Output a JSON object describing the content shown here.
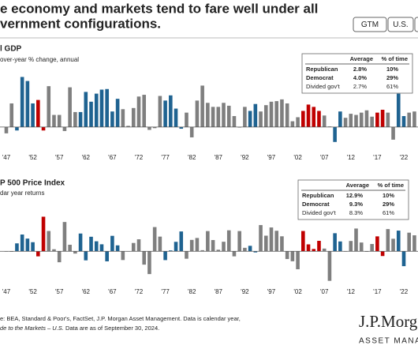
{
  "header": {
    "title_lines": [
      "e economy and markets tend to fare well under all",
      "vernment configurations."
    ],
    "buttons": [
      "GTM",
      "U.S."
    ]
  },
  "chart_data": [
    {
      "type": "bar",
      "title": "l GDP",
      "subtitle": "over-year % change, annual",
      "categories": [
        "'47",
        null,
        null,
        null,
        null,
        "'52",
        null,
        null,
        null,
        null,
        "'57",
        null,
        null,
        null,
        null,
        "'62",
        null,
        null,
        null,
        null,
        "'67",
        null,
        null,
        null,
        null,
        "'72",
        null,
        null,
        null,
        null,
        "'77",
        null,
        null,
        null,
        null,
        "'82",
        null,
        null,
        null,
        null,
        "'87",
        null,
        null,
        null,
        null,
        "'92",
        null,
        null,
        null,
        null,
        "'97",
        null,
        null,
        null,
        null,
        "'02",
        null,
        null,
        null,
        null,
        "'07",
        null,
        null,
        null,
        null,
        "'12",
        null,
        null,
        null,
        null,
        "'17",
        null,
        null,
        null,
        null,
        "'22",
        null,
        null
      ],
      "values": [
        -1.1,
        4.1,
        -0.6,
        8.7,
        8.0,
        4.1,
        4.7,
        -0.6,
        7.1,
        2.1,
        2.1,
        -0.7,
        6.9,
        2.6,
        2.6,
        6.1,
        4.4,
        5.8,
        6.5,
        6.6,
        2.7,
        4.9,
        3.1,
        0.2,
        3.3,
        5.3,
        5.6,
        -0.5,
        -0.2,
        5.4,
        4.6,
        5.5,
        3.2,
        -0.3,
        2.5,
        -1.8,
        4.6,
        7.2,
        4.2,
        3.5,
        3.5,
        4.2,
        3.7,
        1.9,
        -0.1,
        3.5,
        2.8,
        4.0,
        2.7,
        3.8,
        4.4,
        4.5,
        4.8,
        4.1,
        1.0,
        1.7,
        2.8,
        3.9,
        3.5,
        2.8,
        2.0,
        0.1,
        -2.6,
        2.7,
        1.6,
        2.3,
        2.1,
        2.5,
        2.9,
        1.8,
        2.5,
        3.0,
        2.5,
        -2.2,
        5.8,
        1.9,
        2.5,
        2.7
      ],
      "bar_colors": [
        "#7f7f7f",
        "#7f7f7f",
        "#1f6391",
        "#1f6391",
        "#1f6391",
        "#1f6391",
        "#c00000",
        "#c00000",
        "#7f7f7f",
        "#7f7f7f",
        "#7f7f7f",
        "#7f7f7f",
        "#7f7f7f",
        "#7f7f7f",
        "#1f6391",
        "#1f6391",
        "#1f6391",
        "#1f6391",
        "#1f6391",
        "#1f6391",
        "#1f6391",
        "#1f6391",
        "#7f7f7f",
        "#7f7f7f",
        "#7f7f7f",
        "#7f7f7f",
        "#7f7f7f",
        "#7f7f7f",
        "#7f7f7f",
        "#7f7f7f",
        "#1f6391",
        "#1f6391",
        "#1f6391",
        "#1f6391",
        "#7f7f7f",
        "#7f7f7f",
        "#7f7f7f",
        "#7f7f7f",
        "#7f7f7f",
        "#7f7f7f",
        "#7f7f7f",
        "#7f7f7f",
        "#7f7f7f",
        "#7f7f7f",
        "#7f7f7f",
        "#7f7f7f",
        "#1f6391",
        "#1f6391",
        "#7f7f7f",
        "#7f7f7f",
        "#7f7f7f",
        "#7f7f7f",
        "#7f7f7f",
        "#7f7f7f",
        "#7f7f7f",
        "#7f7f7f",
        "#c00000",
        "#c00000",
        "#c00000",
        "#c00000",
        "#7f7f7f",
        "#7f7f7f",
        "#1f6391",
        "#1f6391",
        "#7f7f7f",
        "#7f7f7f",
        "#7f7f7f",
        "#7f7f7f",
        "#7f7f7f",
        "#7f7f7f",
        "#c00000",
        "#c00000",
        "#7f7f7f",
        "#7f7f7f",
        "#1f6391",
        "#1f6391",
        "#7f7f7f",
        "#7f7f7f"
      ],
      "ylim": [
        -4,
        10
      ],
      "legend_table": {
        "headers": [
          "Average",
          "% of time"
        ],
        "rows": [
          {
            "name": "Republican",
            "color": "#c00000",
            "average": "2.8%",
            "share": "10%"
          },
          {
            "name": "Democrat",
            "color": "#1f6391",
            "average": "4.0%",
            "share": "29%"
          },
          {
            "name": "Divided gov't",
            "color": "#595959",
            "average": "2.7%",
            "share": "61%"
          }
        ]
      }
    },
    {
      "type": "bar",
      "title": "P 500 Price Index",
      "subtitle": "dar year returns",
      "categories": [
        "'47",
        null,
        null,
        null,
        null,
        "'52",
        null,
        null,
        null,
        null,
        "'57",
        null,
        null,
        null,
        null,
        "'62",
        null,
        null,
        null,
        null,
        "'67",
        null,
        null,
        null,
        null,
        "'72",
        null,
        null,
        null,
        null,
        "'77",
        null,
        null,
        null,
        null,
        "'82",
        null,
        null,
        null,
        null,
        "'87",
        null,
        null,
        null,
        null,
        "'92",
        null,
        null,
        null,
        null,
        "'97",
        null,
        null,
        null,
        null,
        "'02",
        null,
        null,
        null,
        null,
        "'07",
        null,
        null,
        null,
        null,
        "'12",
        null,
        null,
        null,
        null,
        "'17",
        null,
        null,
        null,
        null,
        "'22",
        null,
        null
      ],
      "values": [
        0.0,
        -0.7,
        10.3,
        21.8,
        16.5,
        11.8,
        -6.6,
        45.0,
        26.4,
        2.6,
        -14.3,
        38.1,
        8.5,
        -3.0,
        23.1,
        -11.8,
        18.9,
        13.0,
        9.1,
        -13.1,
        20.1,
        7.7,
        -11.4,
        0.1,
        10.8,
        15.6,
        -17.4,
        -29.7,
        31.5,
        19.1,
        -11.5,
        1.1,
        12.3,
        25.8,
        -9.7,
        14.8,
        17.3,
        1.4,
        26.3,
        14.6,
        2.0,
        12.4,
        27.3,
        -6.6,
        26.3,
        4.5,
        7.1,
        -1.5,
        34.1,
        20.3,
        31.0,
        26.7,
        19.5,
        -10.1,
        -13.0,
        -23.4,
        26.4,
        9.0,
        3.0,
        13.6,
        3.5,
        -38.5,
        23.5,
        12.8,
        0.0,
        13.4,
        29.6,
        11.4,
        -0.7,
        9.5,
        19.4,
        -6.2,
        28.9,
        16.3,
        26.9,
        -19.4,
        24.2,
        20.8
      ],
      "bar_colors": [
        "#7f7f7f",
        "#7f7f7f",
        "#1f6391",
        "#1f6391",
        "#1f6391",
        "#1f6391",
        "#c00000",
        "#c00000",
        "#7f7f7f",
        "#7f7f7f",
        "#7f7f7f",
        "#7f7f7f",
        "#7f7f7f",
        "#7f7f7f",
        "#1f6391",
        "#1f6391",
        "#1f6391",
        "#1f6391",
        "#1f6391",
        "#1f6391",
        "#1f6391",
        "#1f6391",
        "#7f7f7f",
        "#7f7f7f",
        "#7f7f7f",
        "#7f7f7f",
        "#7f7f7f",
        "#7f7f7f",
        "#7f7f7f",
        "#7f7f7f",
        "#1f6391",
        "#1f6391",
        "#1f6391",
        "#1f6391",
        "#7f7f7f",
        "#7f7f7f",
        "#7f7f7f",
        "#7f7f7f",
        "#7f7f7f",
        "#7f7f7f",
        "#7f7f7f",
        "#7f7f7f",
        "#7f7f7f",
        "#7f7f7f",
        "#7f7f7f",
        "#7f7f7f",
        "#1f6391",
        "#1f6391",
        "#7f7f7f",
        "#7f7f7f",
        "#7f7f7f",
        "#7f7f7f",
        "#7f7f7f",
        "#7f7f7f",
        "#7f7f7f",
        "#7f7f7f",
        "#c00000",
        "#c00000",
        "#c00000",
        "#c00000",
        "#7f7f7f",
        "#7f7f7f",
        "#1f6391",
        "#1f6391",
        "#7f7f7f",
        "#7f7f7f",
        "#7f7f7f",
        "#7f7f7f",
        "#7f7f7f",
        "#7f7f7f",
        "#c00000",
        "#c00000",
        "#7f7f7f",
        "#7f7f7f",
        "#1f6391",
        "#1f6391",
        "#7f7f7f",
        "#7f7f7f"
      ],
      "ylim": [
        -45,
        65
      ],
      "legend_table": {
        "headers": [
          "Average",
          "% of time"
        ],
        "rows": [
          {
            "name": "Republican",
            "color": "#c00000",
            "average": "12.9%",
            "share": "10%"
          },
          {
            "name": "Democrat",
            "color": "#1f6391",
            "average": "9.3%",
            "share": "29%"
          },
          {
            "name": "Divided gov't",
            "color": "#595959",
            "average": "8.3%",
            "share": "61%"
          }
        ]
      }
    }
  ],
  "footer": {
    "source": "e: BEA, Standard & Poor's, FactSet, J.P. Morgan Asset Management. Data is calendar year,",
    "note_italic": "de to the Markets – U.S.",
    "note": " Data are as of September 30, 2024."
  },
  "logo": {
    "name": "J.P.Morg",
    "sub": "ASSET MANAGEM"
  }
}
